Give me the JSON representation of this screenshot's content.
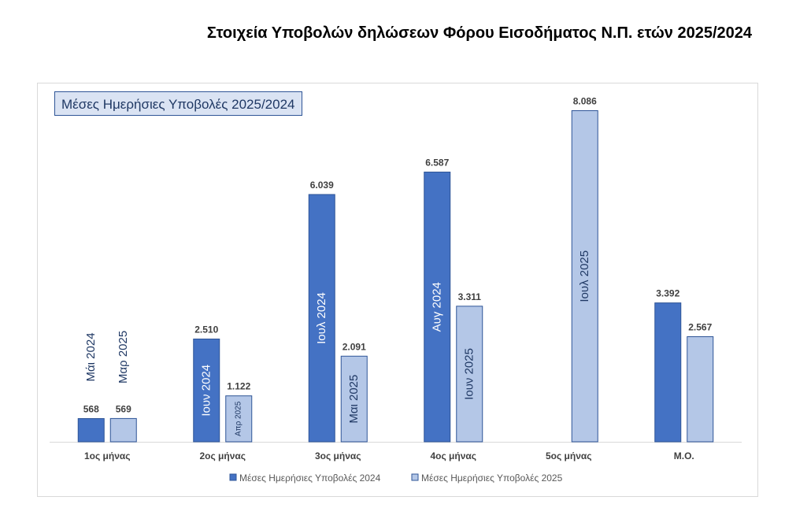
{
  "page_title": "Στοιχεία Υποβολών δηλώσεων Φόρου Εισοδήματος Ν.Π. ετών 2025/2024",
  "chart_data": {
    "type": "bar",
    "title": "Μέσες Ημερήσιες Υποβολές 2025/2024",
    "categories": [
      "1ος μήνας",
      "2ος μήνας",
      "3ος μήνας",
      "4ος μήνας",
      "5ος μήνας",
      "Μ.Ο."
    ],
    "ylim": [
      0,
      9000
    ],
    "grid": false,
    "legend_position": "bottom",
    "series": [
      {
        "name": "Μέσες Ημερήσιες Υποβολές 2024",
        "color": "#4472c4",
        "values": [
          568,
          2510,
          6039,
          6587,
          null,
          3392
        ],
        "value_labels": [
          "568",
          "2.510",
          "6.039",
          "6.587",
          "",
          "3.392"
        ],
        "month_labels": [
          "Μάι 2024",
          "Ιουν 2024",
          "Ιουλ 2024",
          "Αυγ 2024",
          "",
          ""
        ]
      },
      {
        "name": "Μέσες Ημερήσιες Υποβολές 2025",
        "color": "#b4c7e7",
        "values": [
          569,
          1122,
          2091,
          3311,
          8086,
          2567
        ],
        "value_labels": [
          "569",
          "1.122",
          "2.091",
          "3.311",
          "8.086",
          "2.567"
        ],
        "month_labels": [
          "Μαρ 2025",
          "Απρ 2025",
          "Μαι 2025",
          "Ιουν 2025",
          "Ιουλ 2025",
          ""
        ]
      }
    ]
  }
}
